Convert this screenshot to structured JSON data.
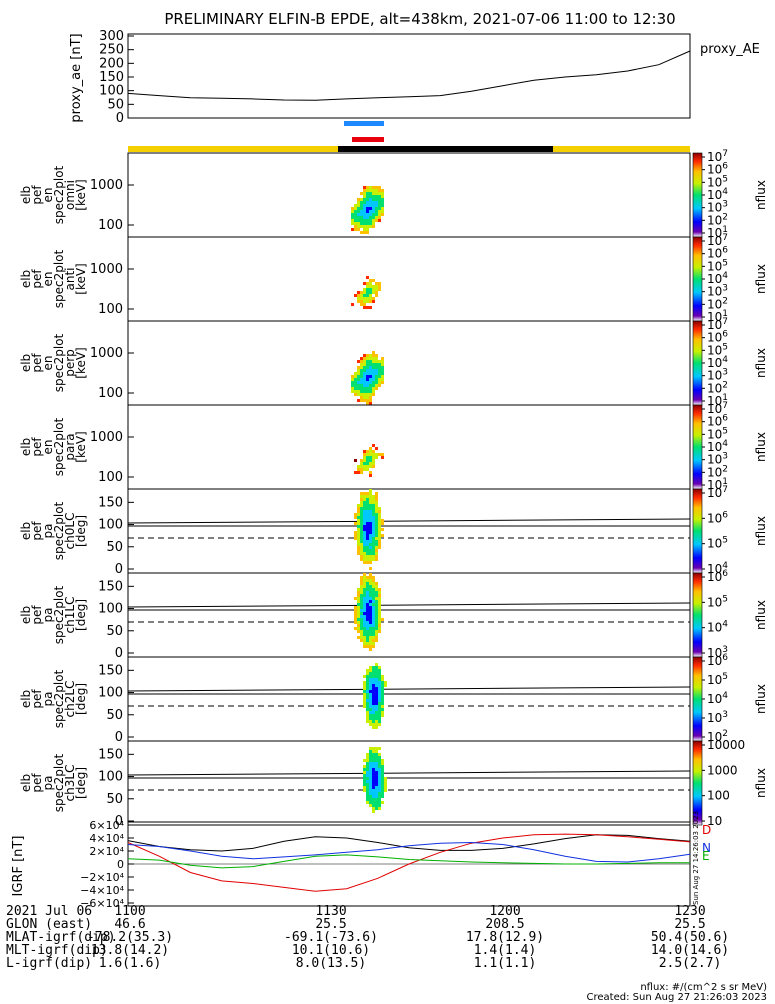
{
  "title": "PRELIMINARY ELFIN-B EPDE, alt=438km, 2021-07-06 11:00 to 12:30",
  "colors": {
    "yellow": "#f5d000",
    "black": "#000000",
    "blue_bar": "#1e88ff",
    "red_bar": "#e8000e"
  },
  "chart_data": [
    {
      "type": "line",
      "panel_id": "proxy_ae",
      "ylabel": "proxy_ae [nT]",
      "legend": "proxy_AE",
      "yticks": [
        "300",
        "250",
        "200",
        "150",
        "100",
        "50",
        "0"
      ],
      "ylim": [
        0,
        300
      ],
      "xlim": [
        0,
        90
      ],
      "x": [
        0,
        5,
        10,
        15,
        20,
        25,
        30,
        35,
        40,
        45,
        50,
        55,
        60,
        65,
        70,
        75,
        80,
        85,
        90
      ],
      "values": [
        90,
        82,
        74,
        72,
        70,
        66,
        65,
        70,
        74,
        78,
        82,
        98,
        118,
        138,
        150,
        158,
        172,
        195,
        245
      ]
    },
    {
      "type": "heatmap",
      "panel_id": "en_omni",
      "ylabel_lines": [
        "elb",
        "pef",
        "en",
        "spec2plot",
        "omni",
        "[keV]"
      ],
      "yticks": [
        "1000",
        "100"
      ],
      "colorbar": {
        "label": "nflux",
        "ticks": [
          "10^7",
          "10^6",
          "10^5",
          "10^4",
          "10^3",
          "10^2",
          "10^1"
        ]
      }
    },
    {
      "type": "heatmap",
      "panel_id": "en_anti",
      "ylabel_lines": [
        "elb",
        "pef",
        "en",
        "spec2plot",
        "anti",
        "[keV]"
      ],
      "yticks": [
        "1000",
        "100"
      ],
      "colorbar": {
        "label": "nflux",
        "ticks": [
          "10^7",
          "10^6",
          "10^5",
          "10^4",
          "10^3",
          "10^2",
          "10^1"
        ]
      }
    },
    {
      "type": "heatmap",
      "panel_id": "en_perp",
      "ylabel_lines": [
        "elb",
        "pef",
        "en",
        "spec2plot",
        "perp",
        "[keV]"
      ],
      "yticks": [
        "1000",
        "100"
      ],
      "colorbar": {
        "label": "nflux",
        "ticks": [
          "10^7",
          "10^6",
          "10^5",
          "10^4",
          "10^3",
          "10^2",
          "10^1"
        ]
      }
    },
    {
      "type": "heatmap",
      "panel_id": "en_para",
      "ylabel_lines": [
        "elb",
        "pef",
        "en",
        "spec2plot",
        "para",
        "[keV]"
      ],
      "yticks": [
        "1000",
        "100"
      ],
      "colorbar": {
        "label": "nflux",
        "ticks": [
          "10^7",
          "10^6",
          "10^5",
          "10^4",
          "10^3",
          "10^2",
          "10^1"
        ]
      }
    },
    {
      "type": "heatmap",
      "panel_id": "pa_ch0",
      "ylabel_lines": [
        "elb",
        "pef",
        "pa",
        "spec2plot",
        "ch0LC",
        "[deg]"
      ],
      "yticks": [
        "150",
        "100",
        "50",
        "0"
      ],
      "colorbar": {
        "label": "nflux",
        "ticks": [
          "10^7",
          "10^6",
          "10^5",
          "10^4"
        ]
      }
    },
    {
      "type": "heatmap",
      "panel_id": "pa_ch1",
      "ylabel_lines": [
        "elb",
        "pef",
        "pa",
        "spec2plot",
        "ch1LC",
        "[deg]"
      ],
      "yticks": [
        "150",
        "100",
        "50",
        "0"
      ],
      "colorbar": {
        "label": "nflux",
        "ticks": [
          "10^6",
          "10^5",
          "10^4",
          "10^3"
        ]
      }
    },
    {
      "type": "heatmap",
      "panel_id": "pa_ch2",
      "ylabel_lines": [
        "elb",
        "pef",
        "pa",
        "spec2plot",
        "ch2LC",
        "[deg]"
      ],
      "yticks": [
        "150",
        "100",
        "50",
        "0"
      ],
      "colorbar": {
        "label": "nflux",
        "ticks": [
          "10^6",
          "10^5",
          "10^4",
          "10^3",
          "10^2"
        ]
      }
    },
    {
      "type": "heatmap",
      "panel_id": "pa_ch3",
      "ylabel_lines": [
        "elb",
        "pef",
        "pa",
        "spec2plot",
        "ch3LC",
        "[deg]"
      ],
      "yticks": [
        "150",
        "100",
        "50",
        "0"
      ],
      "colorbar": {
        "label": "nflux",
        "ticks": [
          "10000",
          "1000",
          "100",
          "10"
        ]
      }
    },
    {
      "type": "line",
      "panel_id": "igrf",
      "ylabel": "IGRF [nT]",
      "yticks": [
        "6×10⁴",
        "4×10⁴",
        "2×10⁴",
        "0",
        "−2×10⁴",
        "−4×10⁴",
        "−6×10⁴"
      ],
      "ylim": [
        -60000,
        60000
      ],
      "xlim": [
        0,
        90
      ],
      "legend": [
        "D",
        "N",
        "E"
      ],
      "stamp": "Sun Aug 27 14:26:03 2023",
      "x": [
        0,
        5,
        10,
        15,
        20,
        25,
        30,
        35,
        40,
        45,
        50,
        55,
        60,
        65,
        70,
        75,
        80,
        85,
        90
      ],
      "series": [
        {
          "color": "#000000",
          "values": [
            36000,
            27000,
            22000,
            20000,
            24000,
            35000,
            42000,
            40000,
            33000,
            25000,
            21000,
            21000,
            24000,
            31000,
            39000,
            45000,
            44000,
            39000,
            35000
          ]
        },
        {
          "color": "#e00000",
          "values": [
            33000,
            12000,
            -13000,
            -26000,
            -30000,
            -36000,
            -42000,
            -38000,
            -22000,
            0,
            18000,
            32000,
            40000,
            45000,
            46000,
            45000,
            42000,
            38000,
            34000
          ]
        },
        {
          "color": "#1030e0",
          "values": [
            30000,
            27000,
            20000,
            12000,
            8000,
            11000,
            14000,
            18000,
            22000,
            28000,
            32000,
            33000,
            30000,
            22000,
            12000,
            4000,
            3000,
            8000,
            15000
          ]
        },
        {
          "color": "#00b000",
          "values": [
            8000,
            6000,
            -2000,
            -6000,
            -4000,
            4000,
            12000,
            14000,
            11000,
            7000,
            5000,
            3000,
            2000,
            1000,
            0,
            0,
            1000,
            2000,
            2000
          ]
        }
      ]
    }
  ],
  "footer": {
    "rows": [
      {
        "label": "2021 Jul 06",
        "values": [
          "1100",
          "1130",
          "1200",
          "1230"
        ]
      },
      {
        "label": "GLON (east)",
        "values": [
          "46.6",
          "25.5",
          "208.5",
          "25.5"
        ]
      },
      {
        "label": "MLAT-igrf(dip)",
        "values": [
          "-78.2(35.3)",
          "-69.1(-73.6)",
          "17.8(12.9)",
          "50.4(50.6)"
        ]
      },
      {
        "label": "MLT-igrf(dip)",
        "values": [
          "13.8(14.2)",
          "10.1(10.6)",
          "1.4(1.4)",
          "14.0(14.6)"
        ]
      },
      {
        "label": "L-igrf(dip)",
        "values": [
          "1.6(1.6)",
          "8.0(13.5)",
          "1.1(1.1)",
          "2.5(2.7)"
        ]
      }
    ],
    "nflux_note": "nflux: #/(cm^2 s sr MeV)",
    "created": "Created: Sun Aug 27 21:26:03 2023"
  }
}
